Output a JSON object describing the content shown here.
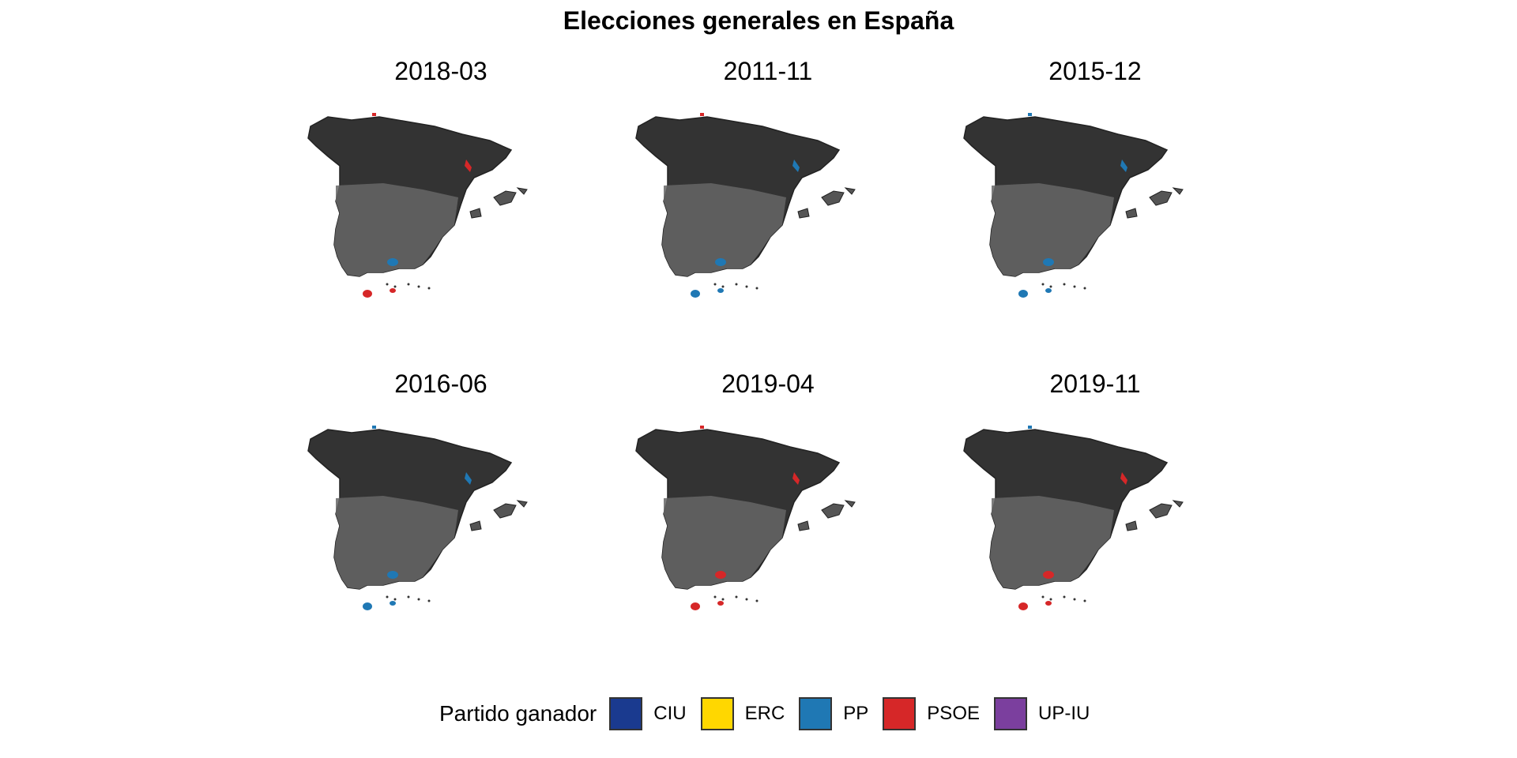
{
  "title": "Elecciones generales en España",
  "panels": [
    {
      "label": "2018-03",
      "winners": {
        "basque": "PSOE",
        "nw": "PSOE",
        "center_south": "PP",
        "cadiz": "PSOE",
        "malaga": "PSOE"
      }
    },
    {
      "label": "2011-11",
      "winners": {
        "basque": "PP",
        "nw": "PSOE",
        "center_south": "PP",
        "cadiz": "PP",
        "malaga": "PP"
      }
    },
    {
      "label": "2015-12",
      "winners": {
        "basque": "PP",
        "nw": "PP",
        "center_south": "PP",
        "cadiz": "PP",
        "malaga": "PP"
      }
    },
    {
      "label": "2016-06",
      "winners": {
        "basque": "PP",
        "nw": "PP",
        "center_south": "PP",
        "cadiz": "PP",
        "malaga": "PP"
      }
    },
    {
      "label": "2019-04",
      "winners": {
        "basque": "PSOE",
        "nw": "PSOE",
        "center_south": "PSOE",
        "cadiz": "PSOE",
        "malaga": "PSOE"
      }
    },
    {
      "label": "2019-11",
      "winners": {
        "basque": "PSOE",
        "nw": "PP",
        "center_south": "PSOE",
        "cadiz": "PSOE",
        "malaga": "PSOE"
      }
    }
  ],
  "legend": {
    "title": "Partido ganador",
    "items": [
      {
        "label": "CIU",
        "color": "#1A3A8F"
      },
      {
        "label": "ERC",
        "color": "#FFD700"
      },
      {
        "label": "PP",
        "color": "#1F78B4"
      },
      {
        "label": "PSOE",
        "color": "#D62728"
      },
      {
        "label": "UP-IU",
        "color": "#7B3F9E"
      }
    ]
  },
  "colors": {
    "mainland": "#333333",
    "southern_fill": "#666666",
    "islands": "#555555",
    "border": "#222222"
  }
}
